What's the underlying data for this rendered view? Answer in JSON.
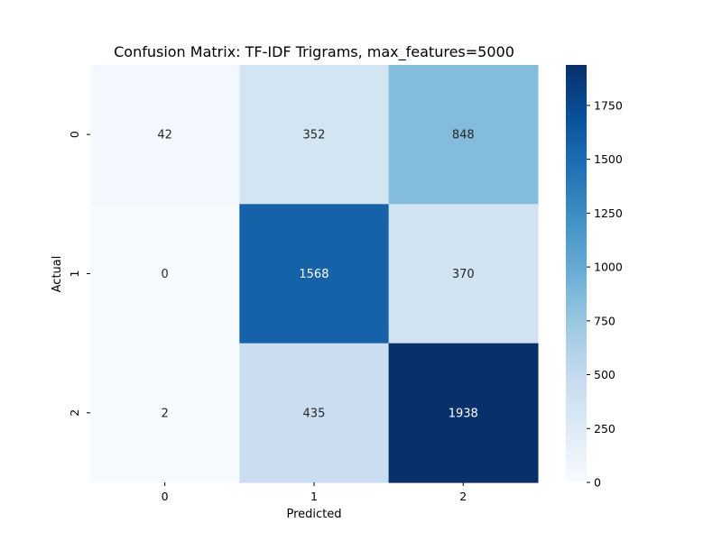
{
  "chart_data": {
    "type": "heatmap",
    "title": "Confusion Matrix: TF-IDF Trigrams, max_features=5000",
    "xlabel": "Predicted",
    "ylabel": "Actual",
    "x_categories": [
      "0",
      "1",
      "2"
    ],
    "y_categories": [
      "0",
      "1",
      "2"
    ],
    "values": [
      [
        42,
        352,
        848
      ],
      [
        0,
        1568,
        370
      ],
      [
        2,
        435,
        1938
      ]
    ],
    "colormap": "Blues",
    "vmin": 0,
    "vmax": 1938,
    "colorbar_ticks": [
      0,
      250,
      500,
      750,
      1000,
      1250,
      1500,
      1750
    ],
    "annotation_colors": {
      "dark": "#262626",
      "light": "#ffffff"
    },
    "colors": {
      "blues": [
        "#f7fbff",
        "#deebf7",
        "#c6dbef",
        "#9ecae1",
        "#6baed6",
        "#4292c6",
        "#2171b5",
        "#08519c",
        "#08306b"
      ]
    }
  }
}
